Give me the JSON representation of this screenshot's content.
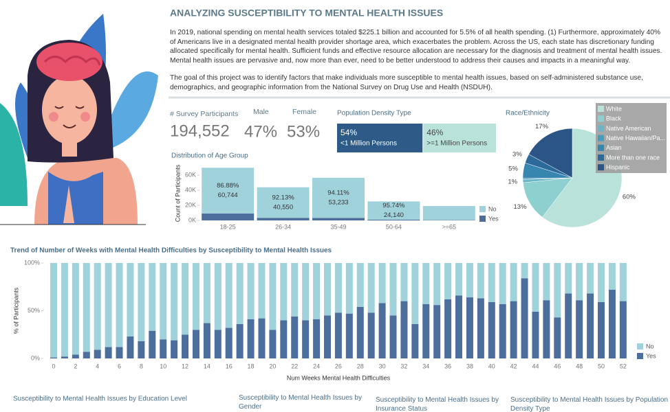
{
  "title": "ANALYZING SUSCEPTIBILITY TO MENTAL HEALTH ISSUES",
  "paragraphs": [
    "In 2019, national spending on mental health services totaled $225.1 billion and accounted for 5.5% of all health spending. (1) Furthermore, approximately 40% of Americans live in a designated mental health provider shortage area, which exacerbates the problem. Across the US, each state has discretionary funding allocated specifically for mental health. Sufficient funds and effective resource allocation are necessary for the diagnosis and treatment of mental health issues. Mental health issues are pervasive and, now more than ever, need to be better understood to address their causes and impacts in a meaningful way.",
    "The goal of this project was to identify factors that make individuals more susceptible to mental health issues, based on self-administered substance use, demographics, and geographic information from the National Survey on Drug Use and Health (NSDUH)."
  ],
  "kpis": [
    {
      "label": "# Survey Participants",
      "value": "194,552"
    },
    {
      "label": "Male",
      "value": "47%"
    },
    {
      "label": "Female",
      "value": "53%"
    }
  ],
  "bottom_titles": [
    "Susceptibility to Mental Health Issues by Education Level",
    "Susceptibility to Mental Health Issues by Gender",
    "Susceptibility to Mental Health Issues by Insurance Status",
    "Susceptibility to Mental Health Issues by Population Density Type"
  ],
  "chart_data": [
    {
      "type": "share_bar",
      "title": "Population Density Type",
      "categories": [
        "<1 Million Persons",
        ">=1 Million Persons"
      ],
      "values": [
        54,
        46
      ],
      "value_labels": [
        "54%",
        "46%"
      ],
      "colors": [
        "#2d5a87",
        "#b9e3da"
      ]
    },
    {
      "type": "stacked_bar",
      "title": "Distribution of Age Group",
      "y_label": "Count of Participants",
      "categories": [
        "18-25",
        "26-34",
        "35-49",
        "50-64",
        ">=65"
      ],
      "series": [
        {
          "name": "No",
          "color": "#a0d2db",
          "values": [
            60744,
            40550,
            53233,
            24140,
            18700
          ],
          "value_labels": [
            "60,744",
            "40,550",
            "53,233",
            "24,140",
            null
          ],
          "shares": [
            86.88,
            92.13,
            94.11,
            95.74,
            null
          ],
          "share_labels": [
            "86.88%",
            "92.13%",
            "94.11%",
            "95.74%",
            null
          ]
        },
        {
          "name": "Yes",
          "color": "#4b6e9c",
          "values": [
            9173,
            3464,
            3331,
            1074,
            400
          ]
        }
      ],
      "ylim": [
        0,
        72000
      ],
      "yticks": [
        {
          "value": 0,
          "label": "0K"
        },
        {
          "value": 20000,
          "label": "20K"
        },
        {
          "value": 40000,
          "label": "40K"
        },
        {
          "value": 60000,
          "label": "60K"
        }
      ]
    },
    {
      "type": "pie",
      "title": "Race/Ethnicity",
      "categories": [
        "White",
        "Black",
        "Native American",
        "Native Hawaiian/Pa...",
        "Asian",
        "More than one race",
        "Hispanic"
      ],
      "values": [
        60,
        13,
        1,
        0.4,
        5,
        3,
        17
      ],
      "value_labels": [
        "60%",
        "13%",
        "1%",
        null,
        "5%",
        "3%",
        "17%"
      ],
      "colors": [
        "#b9e3da",
        "#8ecfd0",
        "#6ab6c7",
        "#4a9dbf",
        "#3686b0",
        "#2b6a9b",
        "#2a5585"
      ]
    },
    {
      "type": "stacked_bar",
      "title": "Trend of Number of Weeks with Mental Health Difficulties by Susceptibility to Mental Health Issues",
      "x_label": "Num Weeks Mental Health Difficulties",
      "y_label": "% of Participants",
      "categories": [
        0,
        null,
        2,
        null,
        4,
        null,
        6,
        null,
        8,
        null,
        10,
        null,
        12,
        null,
        14,
        null,
        16,
        null,
        18,
        null,
        20,
        null,
        22,
        null,
        24,
        null,
        26,
        null,
        28,
        null,
        30,
        null,
        32,
        null,
        34,
        null,
        36,
        null,
        38,
        null,
        40,
        null,
        42,
        null,
        44,
        null,
        46,
        null,
        48,
        null,
        50,
        null,
        52
      ],
      "series": [
        {
          "name": "No",
          "color": "#a0d2db",
          "values": [
            99,
            98,
            96,
            93,
            91,
            88,
            88,
            77,
            82,
            71,
            80,
            81,
            75,
            70,
            63,
            70,
            68,
            64,
            59,
            58,
            70,
            60,
            56,
            60,
            59,
            55,
            52,
            53,
            46,
            52,
            42,
            55,
            40,
            64,
            43,
            44,
            38,
            34,
            36,
            37,
            41,
            43,
            40,
            16,
            51,
            39,
            57,
            32,
            39,
            32,
            41,
            28,
            40
          ]
        },
        {
          "name": "Yes",
          "color": "#4b6e9c",
          "values": [
            1,
            2,
            4,
            7,
            9,
            12,
            12,
            23,
            18,
            29,
            20,
            19,
            25,
            30,
            37,
            30,
            32,
            36,
            41,
            42,
            30,
            40,
            44,
            40,
            41,
            45,
            48,
            47,
            54,
            48,
            58,
            45,
            60,
            36,
            57,
            56,
            62,
            66,
            64,
            63,
            59,
            57,
            60,
            84,
            49,
            61,
            43,
            68,
            61,
            68,
            59,
            72,
            60
          ]
        }
      ],
      "ylim": [
        0,
        100
      ],
      "yticks": [
        {
          "value": 0,
          "label": "0%"
        },
        {
          "value": 50,
          "label": "50%"
        },
        {
          "value": 100,
          "label": "100%"
        }
      ]
    }
  ]
}
